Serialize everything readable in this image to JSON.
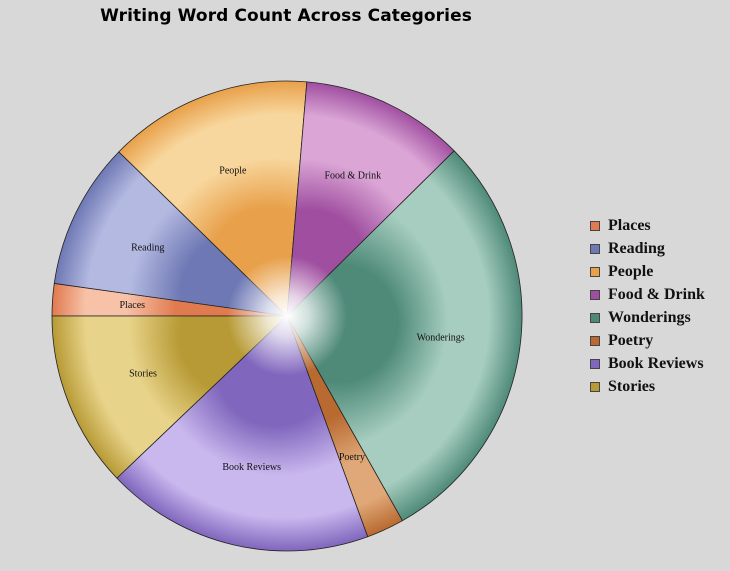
{
  "chart_data": {
    "type": "pie",
    "title": "Writing Word Count Across Categories",
    "legend_position": "right",
    "series": [
      {
        "name": "Places",
        "value": 2.3,
        "color": "#e07a4f",
        "light": "#f7c2a8"
      },
      {
        "name": "Reading",
        "value": 10.5,
        "color": "#6e78b4",
        "light": "#b3b9e0"
      },
      {
        "name": "People",
        "value": 14.6,
        "color": "#e8a04a",
        "light": "#f8d79e"
      },
      {
        "name": "Food & Drink",
        "value": 11.7,
        "color": "#a04fa0",
        "light": "#dba6d6"
      },
      {
        "name": "Wonderings",
        "value": 30.4,
        "color": "#4f8a79",
        "light": "#a6cdbf"
      },
      {
        "name": "Poetry",
        "value": 2.7,
        "color": "#b86a30",
        "light": "#e0a878"
      },
      {
        "name": "Book Reviews",
        "value": 19.2,
        "color": "#8066bd",
        "light": "#c9b8ee"
      },
      {
        "name": "Stories",
        "value": 12.6,
        "color": "#b79a35",
        "light": "#e8d38a"
      }
    ]
  }
}
